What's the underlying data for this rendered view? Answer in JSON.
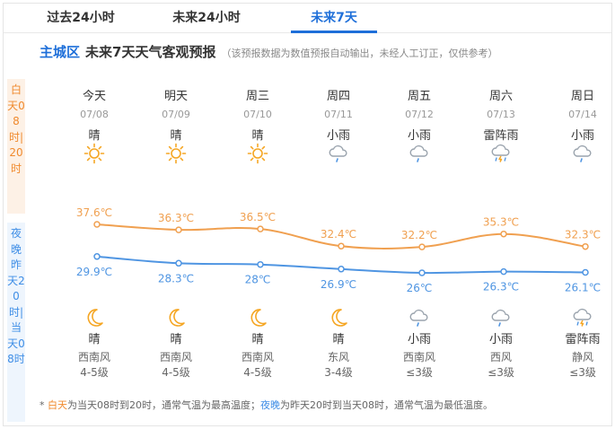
{
  "tabs": [
    {
      "label": "过去24小时",
      "active": false
    },
    {
      "label": "未来24小时",
      "active": false
    },
    {
      "label": "未来7天",
      "active": true
    }
  ],
  "header": {
    "city": "主城区",
    "title": "未来7天天气客观预报",
    "note": "（该预报数据为数值预报自动输出，未经人工订正，仅供参考）"
  },
  "side_labels": {
    "day": "白天08时|20时",
    "night": "夜晚昨天20时|当天08时"
  },
  "days": [
    {
      "name": "今天",
      "date": "07/08",
      "day_wx": "晴",
      "day_icon": "sun-icon",
      "high": "37.6℃",
      "high_val": 37.6,
      "low": "29.9℃",
      "low_val": 29.9,
      "night_icon": "moon-icon",
      "night_wx": "晴",
      "wind": "西南风",
      "level": "4-5级"
    },
    {
      "name": "明天",
      "date": "07/09",
      "day_wx": "晴",
      "day_icon": "sun-icon",
      "high": "36.3℃",
      "high_val": 36.3,
      "low": "28.3℃",
      "low_val": 28.3,
      "night_icon": "moon-icon",
      "night_wx": "晴",
      "wind": "西南风",
      "level": "4-5级"
    },
    {
      "name": "周三",
      "date": "07/10",
      "day_wx": "晴",
      "day_icon": "sun-icon",
      "high": "36.5℃",
      "high_val": 36.5,
      "low": "28℃",
      "low_val": 28,
      "night_icon": "moon-icon",
      "night_wx": "晴",
      "wind": "西南风",
      "level": "4-5级"
    },
    {
      "name": "周四",
      "date": "07/11",
      "day_wx": "小雨",
      "day_icon": "light-rain-icon",
      "high": "32.4℃",
      "high_val": 32.4,
      "low": "26.9℃",
      "low_val": 26.9,
      "night_icon": "moon-icon",
      "night_wx": "晴",
      "wind": "东风",
      "level": "3-4级"
    },
    {
      "name": "周五",
      "date": "07/12",
      "day_wx": "小雨",
      "day_icon": "light-rain-icon",
      "high": "32.2℃",
      "high_val": 32.2,
      "low": "26℃",
      "low_val": 26,
      "night_icon": "light-rain-icon",
      "night_wx": "小雨",
      "wind": "西南风",
      "level": "≤3级"
    },
    {
      "name": "周六",
      "date": "07/13",
      "day_wx": "雷阵雨",
      "day_icon": "thunderstorm-icon",
      "high": "35.3℃",
      "high_val": 35.3,
      "low": "26.3℃",
      "low_val": 26.3,
      "night_icon": "light-rain-icon",
      "night_wx": "小雨",
      "wind": "西风",
      "level": "≤3级"
    },
    {
      "name": "周日",
      "date": "07/14",
      "day_wx": "小雨",
      "day_icon": "light-rain-icon",
      "high": "32.3℃",
      "high_val": 32.3,
      "low": "26.1℃",
      "low_val": 26.1,
      "night_icon": "thunderstorm-icon",
      "night_wx": "雷阵雨",
      "wind": "静风",
      "level": "≤3级"
    }
  ],
  "colors": {
    "high_line": "#f0a050",
    "low_line": "#4f95e2",
    "accent": "#1e6fd9"
  },
  "footnote": {
    "prefix": "* ",
    "day_word": "白天",
    "day_text": "为当天08时到20时，通常气温为最高温度；",
    "night_word": "夜晚",
    "night_text": "为昨天20时到当天08时，通常气温为最低温度。"
  },
  "chart_data": {
    "type": "line",
    "categories": [
      "07/08",
      "07/09",
      "07/10",
      "07/11",
      "07/12",
      "07/13",
      "07/14"
    ],
    "series": [
      {
        "values": [
          37.6,
          36.3,
          36.5,
          32.4,
          32.2,
          35.3,
          32.3
        ]
      },
      {
        "values": [
          29.9,
          28.3,
          28,
          26.9,
          26,
          26.3,
          26.1
        ]
      }
    ],
    "ylabel": "",
    "xlabel": ""
  }
}
